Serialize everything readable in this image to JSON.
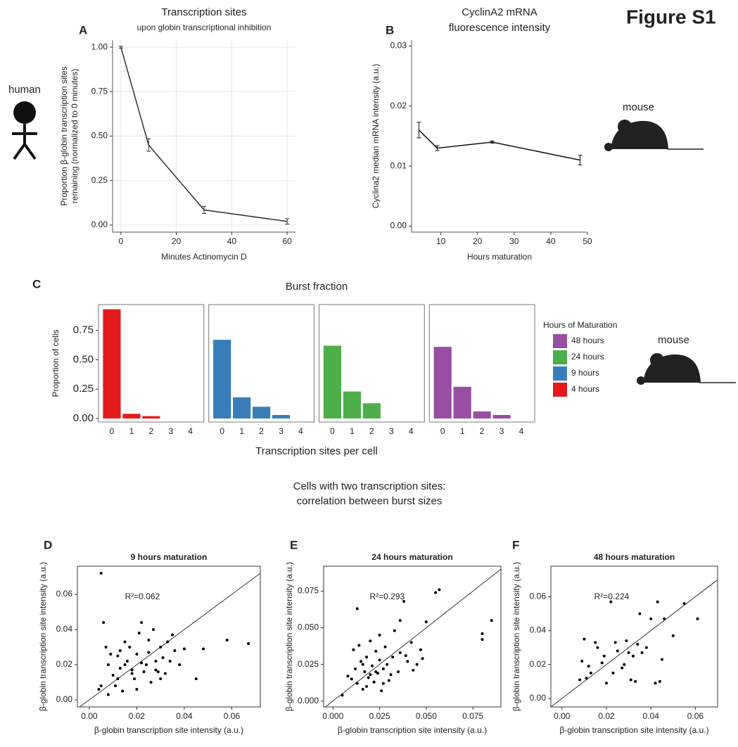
{
  "figure_title": "Figure S1",
  "panel_letters": [
    "A",
    "B",
    "C",
    "D",
    "E",
    "F"
  ],
  "icon_labels": [
    "human",
    "mouse",
    "mouse"
  ],
  "scatter_group_title": [
    "Cells with two transcription sites:",
    "correlation between burst sizes"
  ],
  "chart_data": [
    {
      "type": "line",
      "title": "Transcription sites",
      "subtitle": "upon globin transcriptional inhibition",
      "xlabel": "Minutes Actinomycin D",
      "ylabel": [
        "Proportion β-globin transcription sites",
        "remaining (normalized to 0 minutes)"
      ],
      "x": [
        0,
        10,
        30,
        60
      ],
      "values": [
        1.0,
        0.45,
        0.085,
        0.02
      ],
      "errors": [
        0.005,
        0.035,
        0.02,
        0.015
      ],
      "color": "#333333",
      "xlim": [
        -3,
        63
      ],
      "xticks": [
        0,
        20,
        40,
        60
      ],
      "ylim": [
        -0.04,
        1.04
      ],
      "yticks": [
        {
          "value": 0,
          "label": "0.00"
        },
        {
          "value": 0.25,
          "label": "0.25"
        },
        {
          "value": 0.5,
          "label": "0.50"
        },
        {
          "value": 0.75,
          "label": "0.75"
        },
        {
          "value": 1,
          "label": "1.00"
        }
      ],
      "grid": true
    },
    {
      "type": "line",
      "title": [
        "CyclinA2 mRNA",
        "fluorescence intensity"
      ],
      "xlabel": "Hours maturation",
      "ylabel": "Cyclina2 median  mRNA intensity (a.u.)",
      "x": [
        4,
        9,
        24,
        48
      ],
      "values": [
        0.016,
        0.013,
        0.014,
        0.011
      ],
      "errors": [
        0.0013,
        0.0004,
        0.0002,
        0.0008
      ],
      "color": "#111111",
      "xlim": [
        2,
        50
      ],
      "xticks": [
        10,
        20,
        30,
        40,
        50
      ],
      "ylim": [
        -0.001,
        0.031
      ],
      "yticks": [
        {
          "value": 0,
          "label": "0.00"
        },
        {
          "value": 0.01,
          "label": "0.01"
        },
        {
          "value": 0.02,
          "label": "0.02"
        },
        {
          "value": 0.03,
          "label": "0.03"
        }
      ],
      "grid": false
    },
    {
      "type": "bar",
      "title": "Burst fraction",
      "xlabel": "Transcription sites per cell",
      "ylabel": "Proportion of cells",
      "legend_title": "Hours of Maturation",
      "categories": [
        "0",
        "1",
        "2",
        "3",
        "4"
      ],
      "series": [
        {
          "name": "4 hours",
          "color": "#e41a1c",
          "values": [
            0.93,
            0.04,
            0.02,
            0,
            0
          ]
        },
        {
          "name": "9 hours",
          "color": "#377eb8",
          "values": [
            0.67,
            0.18,
            0.1,
            0.03,
            0
          ]
        },
        {
          "name": "24 hours",
          "color": "#4daf4a",
          "values": [
            0.62,
            0.23,
            0.13,
            0,
            0
          ]
        },
        {
          "name": "48 hours",
          "color": "#984ea3",
          "values": [
            0.61,
            0.27,
            0.06,
            0.03,
            0
          ]
        }
      ],
      "ylim": [
        -0.03,
        0.97
      ],
      "yticks": [
        {
          "value": 0,
          "label": "0.00"
        },
        {
          "value": 0.25,
          "label": "0.25"
        },
        {
          "value": 0.5,
          "label": "0.50"
        },
        {
          "value": 0.75,
          "label": "0.75"
        }
      ]
    },
    {
      "type": "scatter",
      "title": "9 hours maturation",
      "annotation": "R²=0.062",
      "xlabel": "β-globin transcription site intensity (a.u.)",
      "ylabel": "β-globin transcription site intensity (a.u.)",
      "x": [
        0.005,
        0.006,
        0.004,
        0.008,
        0.007,
        0.01,
        0.012,
        0.011,
        0.013,
        0.015,
        0.014,
        0.016,
        0.018,
        0.017,
        0.019,
        0.02,
        0.021,
        0.022,
        0.023,
        0.024,
        0.025,
        0.026,
        0.027,
        0.028,
        0.029,
        0.03,
        0.031,
        0.032,
        0.033,
        0.035,
        0.036,
        0.038,
        0.04,
        0.045,
        0.048,
        0.058,
        0.067,
        0.005,
        0.009,
        0.012,
        0.015,
        0.02,
        0.025,
        0.03,
        0.034,
        0.022,
        0.018,
        0.008,
        0.013,
        0.028
      ],
      "values": [
        0.072,
        0.044,
        0.006,
        0.02,
        0.03,
        0.014,
        0.025,
        0.008,
        0.018,
        0.033,
        0.005,
        0.022,
        0.017,
        0.03,
        0.012,
        0.026,
        0.038,
        0.044,
        0.016,
        0.02,
        0.027,
        0.01,
        0.04,
        0.022,
        0.016,
        0.03,
        0.024,
        0.015,
        0.033,
        0.037,
        0.028,
        0.02,
        0.029,
        0.012,
        0.029,
        0.034,
        0.032,
        0.008,
        0.026,
        0.012,
        0.02,
        0.006,
        0.034,
        0.012,
        0.022,
        0.021,
        0.015,
        0.003,
        0.028,
        0.017
      ],
      "color": "#000000",
      "xlim": [
        -0.005,
        0.072
      ],
      "xticks": [
        {
          "value": 0,
          "label": "0.00"
        },
        {
          "value": 0.02,
          "label": "0.02"
        },
        {
          "value": 0.04,
          "label": "0.04"
        },
        {
          "value": 0.06,
          "label": "0.06"
        }
      ],
      "ylim": [
        -0.004,
        0.076
      ],
      "yticks": [
        {
          "value": 0,
          "label": "0.00"
        },
        {
          "value": 0.02,
          "label": "0.02"
        },
        {
          "value": 0.04,
          "label": "0.04"
        },
        {
          "value": 0.06,
          "label": "0.06"
        }
      ]
    },
    {
      "type": "scatter",
      "title": "24 hours maturation",
      "annotation": "R²=0.293",
      "xlabel": "β-globin transcription site intensity (a.u.)",
      "ylabel": "β-globin transcription site intensity (a.u.)",
      "x": [
        0.005,
        0.008,
        0.01,
        0.012,
        0.013,
        0.014,
        0.015,
        0.016,
        0.017,
        0.018,
        0.019,
        0.02,
        0.021,
        0.022,
        0.023,
        0.024,
        0.025,
        0.026,
        0.027,
        0.028,
        0.029,
        0.03,
        0.032,
        0.033,
        0.035,
        0.036,
        0.038,
        0.039,
        0.04,
        0.042,
        0.045,
        0.047,
        0.05,
        0.055,
        0.057,
        0.08,
        0.08,
        0.085,
        0.013,
        0.02,
        0.023,
        0.027,
        0.031,
        0.018,
        0.011,
        0.036,
        0.043,
        0.048,
        0.016,
        0.025
      ],
      "values": [
        0.004,
        0.017,
        0.015,
        0.022,
        0.012,
        0.038,
        0.027,
        0.008,
        0.02,
        0.03,
        0.016,
        0.041,
        0.024,
        0.013,
        0.034,
        0.019,
        0.028,
        0.007,
        0.022,
        0.037,
        0.025,
        0.014,
        0.03,
        0.048,
        0.02,
        0.055,
        0.068,
        0.031,
        0.027,
        0.04,
        0.025,
        0.035,
        0.054,
        0.074,
        0.076,
        0.046,
        0.042,
        0.055,
        0.063,
        0.018,
        0.02,
        0.012,
        0.018,
        0.01,
        0.035,
        0.033,
        0.021,
        0.029,
        0.025,
        0.045
      ],
      "color": "#000000",
      "xlim": [
        -0.005,
        0.09
      ],
      "xticks": [
        {
          "value": 0,
          "label": "0.000"
        },
        {
          "value": 0.025,
          "label": "0.025"
        },
        {
          "value": 0.05,
          "label": "0.050"
        },
        {
          "value": 0.075,
          "label": "0.075"
        }
      ],
      "ylim": [
        -0.004,
        0.092
      ],
      "yticks": [
        {
          "value": 0,
          "label": "0.000"
        },
        {
          "value": 0.025,
          "label": "0.025"
        },
        {
          "value": 0.05,
          "label": "0.050"
        },
        {
          "value": 0.075,
          "label": "0.075"
        }
      ]
    },
    {
      "type": "scatter",
      "title": "48 hours maturation",
      "annotation": "R²=0.224",
      "xlabel": "β-globin transcription site intensity (a.u.)",
      "ylabel": "β-globin transcription site intensity (a.u.)",
      "x": [
        0.008,
        0.009,
        0.01,
        0.011,
        0.012,
        0.013,
        0.015,
        0.016,
        0.018,
        0.019,
        0.02,
        0.022,
        0.023,
        0.024,
        0.025,
        0.027,
        0.028,
        0.029,
        0.03,
        0.031,
        0.032,
        0.034,
        0.035,
        0.038,
        0.04,
        0.042,
        0.043,
        0.045,
        0.046,
        0.05,
        0.055,
        0.061,
        0.033,
        0.036,
        0.044
      ],
      "values": [
        0.011,
        0.022,
        0.035,
        0.012,
        0.019,
        0.015,
        0.033,
        0.03,
        0.021,
        0.025,
        0.009,
        0.057,
        0.015,
        0.033,
        0.028,
        0.018,
        0.02,
        0.034,
        0.027,
        0.011,
        0.025,
        0.032,
        0.05,
        0.03,
        0.047,
        0.009,
        0.057,
        0.023,
        0.047,
        0.037,
        0.056,
        0.047,
        0.01,
        0.027,
        0.01
      ],
      "color": "#000000",
      "xlim": [
        -0.005,
        0.07
      ],
      "xticks": [
        {
          "value": 0,
          "label": "0.00"
        },
        {
          "value": 0.02,
          "label": "0.02"
        },
        {
          "value": 0.04,
          "label": "0.04"
        },
        {
          "value": 0.06,
          "label": "0.06"
        }
      ],
      "ylim": [
        -0.005,
        0.078
      ],
      "yticks": [
        {
          "value": 0,
          "label": "0.00"
        },
        {
          "value": 0.02,
          "label": "0.02"
        },
        {
          "value": 0.04,
          "label": "0.04"
        },
        {
          "value": 0.06,
          "label": "0.06"
        }
      ]
    }
  ]
}
